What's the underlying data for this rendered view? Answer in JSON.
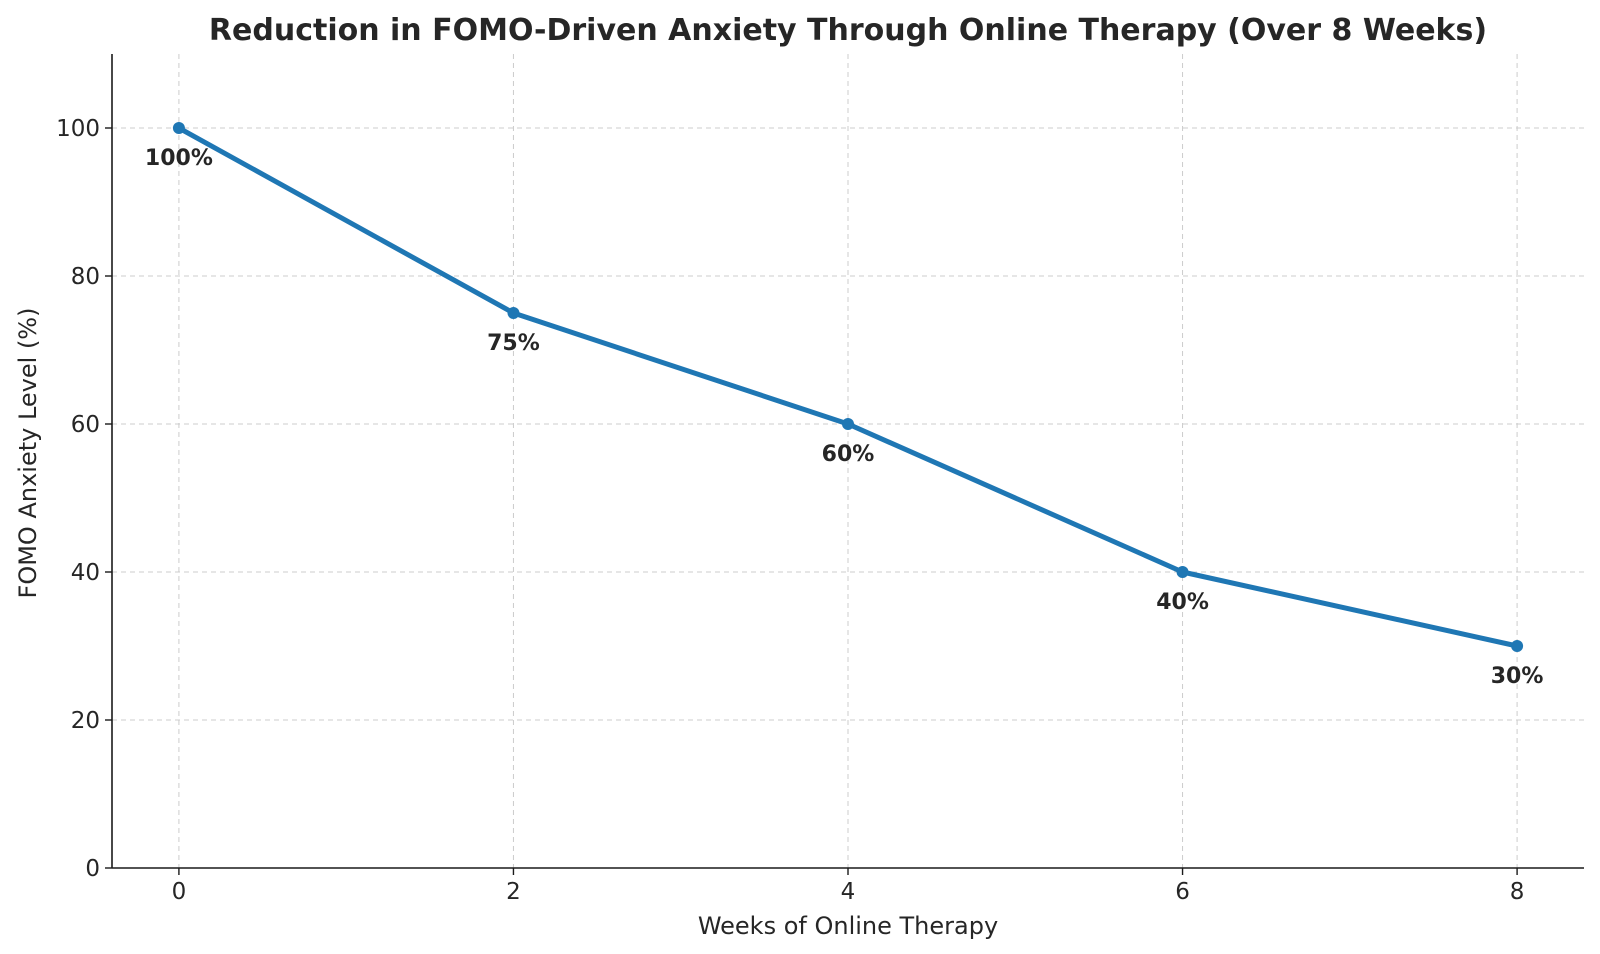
{
  "chart_data": {
    "type": "line",
    "title": "Reduction in FOMO-Driven Anxiety Through Online Therapy (Over 8 Weeks)",
    "xlabel": "Weeks of Online Therapy",
    "ylabel": "FOMO Anxiety Level (%)",
    "x": [
      0,
      2,
      4,
      6,
      8
    ],
    "series": [
      {
        "values": [
          100,
          75,
          60,
          40,
          30
        ],
        "color": "#1f77b4",
        "marker": "circle"
      }
    ],
    "data_labels": [
      "100%",
      "75%",
      "60%",
      "40%",
      "30%"
    ],
    "xticks": [
      0,
      2,
      4,
      6,
      8
    ],
    "yticks": [
      0,
      20,
      40,
      60,
      80,
      100
    ],
    "xlim": [
      -0.4,
      8.4
    ],
    "ylim": [
      0,
      110
    ],
    "grid": true
  }
}
